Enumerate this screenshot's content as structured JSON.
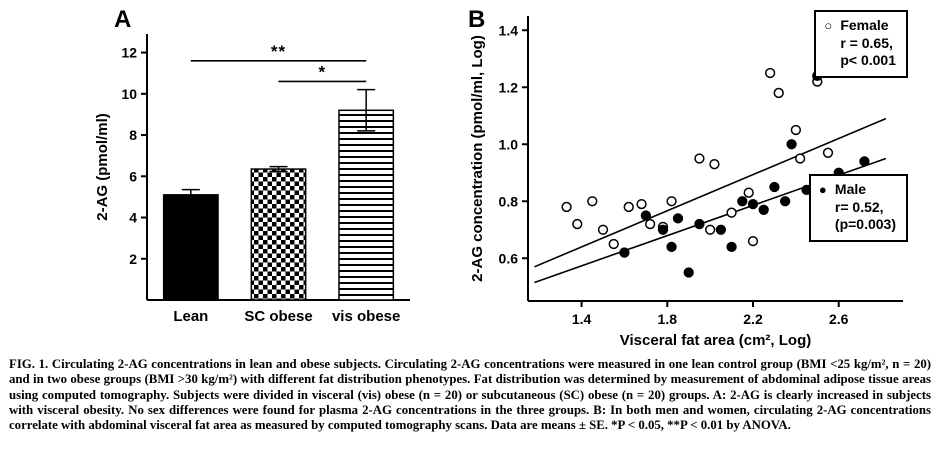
{
  "figure": {
    "panel_a_label": "A",
    "panel_b_label": "B"
  },
  "icons": {
    "open_circle": "○",
    "filled_circle": "●"
  },
  "colors": {
    "ink": "#000000",
    "paper": "#ffffff"
  },
  "caption": "FIG. 1. Circulating 2-AG concentrations in lean and obese subjects. Circulating 2-AG concentrations were measured in one lean control group (BMI <25 kg/m², n = 20) and in two obese groups (BMI >30 kg/m²) with different fat distribution phenotypes. Fat distribution was determined by measurement of abdominal adipose tissue areas using computed tomography. Subjects were divided in visceral (vis) obese (n = 20) or subcutaneous (SC) obese (n = 20) groups. A: 2-AG is clearly increased in subjects with visceral obesity. No sex differences were found for plasma 2-AG concentrations in the three groups. B: In both men and women, circulating 2-AG concentrations correlate with abdominal visceral fat area as measured by computed tomography scans. Data are means ± SE. *P < 0.05, **P < 0.01 by ANOVA.",
  "chart_data": [
    {
      "type": "bar",
      "panel": "A",
      "title": "",
      "xlabel": "",
      "ylabel": "2-AG (pmol/ml)",
      "categories": [
        "Lean",
        "SC obese",
        "vis obese"
      ],
      "values": [
        5.1,
        6.35,
        9.2
      ],
      "errors": [
        0.25,
        0.12,
        1.0
      ],
      "bar_patterns": [
        "solid",
        "checker",
        "hlines"
      ],
      "ylim": [
        0,
        12.9
      ],
      "yticks": [
        2,
        4,
        6,
        8,
        10,
        12
      ],
      "grid": false,
      "significance": [
        {
          "from": 0,
          "to": 2,
          "y": 11.6,
          "label": "**"
        },
        {
          "from": 1,
          "to": 2,
          "y": 10.6,
          "label": "*"
        }
      ]
    },
    {
      "type": "scatter",
      "panel": "B",
      "title": "",
      "xlabel": "Visceral fat area (cm², Log)",
      "ylabel": "2-AG concentration (pmol/ml, Log)",
      "xlim": [
        1.15,
        2.9
      ],
      "ylim": [
        0.45,
        1.45
      ],
      "xticks": [
        1.4,
        1.8,
        2.2,
        2.6
      ],
      "yticks": [
        0.6,
        0.8,
        1.0,
        1.2,
        1.4
      ],
      "grid": false,
      "legend_position": "right",
      "series": [
        {
          "name": "Female",
          "marker": "open",
          "r": 0.65,
          "p": "p< 0.001",
          "legend": [
            "Female",
            "r = 0.65,",
            "p< 0.001"
          ],
          "fit_line": {
            "x1": 1.18,
            "y1": 0.57,
            "x2": 2.82,
            "y2": 1.09
          },
          "points": [
            [
              1.33,
              0.78
            ],
            [
              1.38,
              0.72
            ],
            [
              1.45,
              0.8
            ],
            [
              1.5,
              0.7
            ],
            [
              1.55,
              0.65
            ],
            [
              1.62,
              0.78
            ],
            [
              1.68,
              0.79
            ],
            [
              1.72,
              0.72
            ],
            [
              1.78,
              0.71
            ],
            [
              1.82,
              0.8
            ],
            [
              1.95,
              0.95
            ],
            [
              2.0,
              0.7
            ],
            [
              2.02,
              0.93
            ],
            [
              2.1,
              0.76
            ],
            [
              2.18,
              0.83
            ],
            [
              2.2,
              0.66
            ],
            [
              2.28,
              1.25
            ],
            [
              2.32,
              1.18
            ],
            [
              2.4,
              1.05
            ],
            [
              2.42,
              0.95
            ],
            [
              2.5,
              1.22
            ],
            [
              2.55,
              0.97
            ]
          ]
        },
        {
          "name": "Male",
          "marker": "filled",
          "r": 0.52,
          "p": "(p=0.003)",
          "legend": [
            "Male",
            "r= 0.52,",
            "(p=0.003)"
          ],
          "fit_line": {
            "x1": 1.18,
            "y1": 0.515,
            "x2": 2.82,
            "y2": 0.95
          },
          "points": [
            [
              1.6,
              0.62
            ],
            [
              1.7,
              0.75
            ],
            [
              1.78,
              0.7
            ],
            [
              1.82,
              0.64
            ],
            [
              1.85,
              0.74
            ],
            [
              1.9,
              0.55
            ],
            [
              1.95,
              0.72
            ],
            [
              2.05,
              0.7
            ],
            [
              2.1,
              0.64
            ],
            [
              2.15,
              0.8
            ],
            [
              2.2,
              0.79
            ],
            [
              2.25,
              0.77
            ],
            [
              2.3,
              0.85
            ],
            [
              2.35,
              0.8
            ],
            [
              2.38,
              1.0
            ],
            [
              2.45,
              0.84
            ],
            [
              2.5,
              1.24
            ],
            [
              2.55,
              0.86
            ],
            [
              2.6,
              0.9
            ],
            [
              2.72,
              0.94
            ]
          ]
        }
      ]
    }
  ]
}
